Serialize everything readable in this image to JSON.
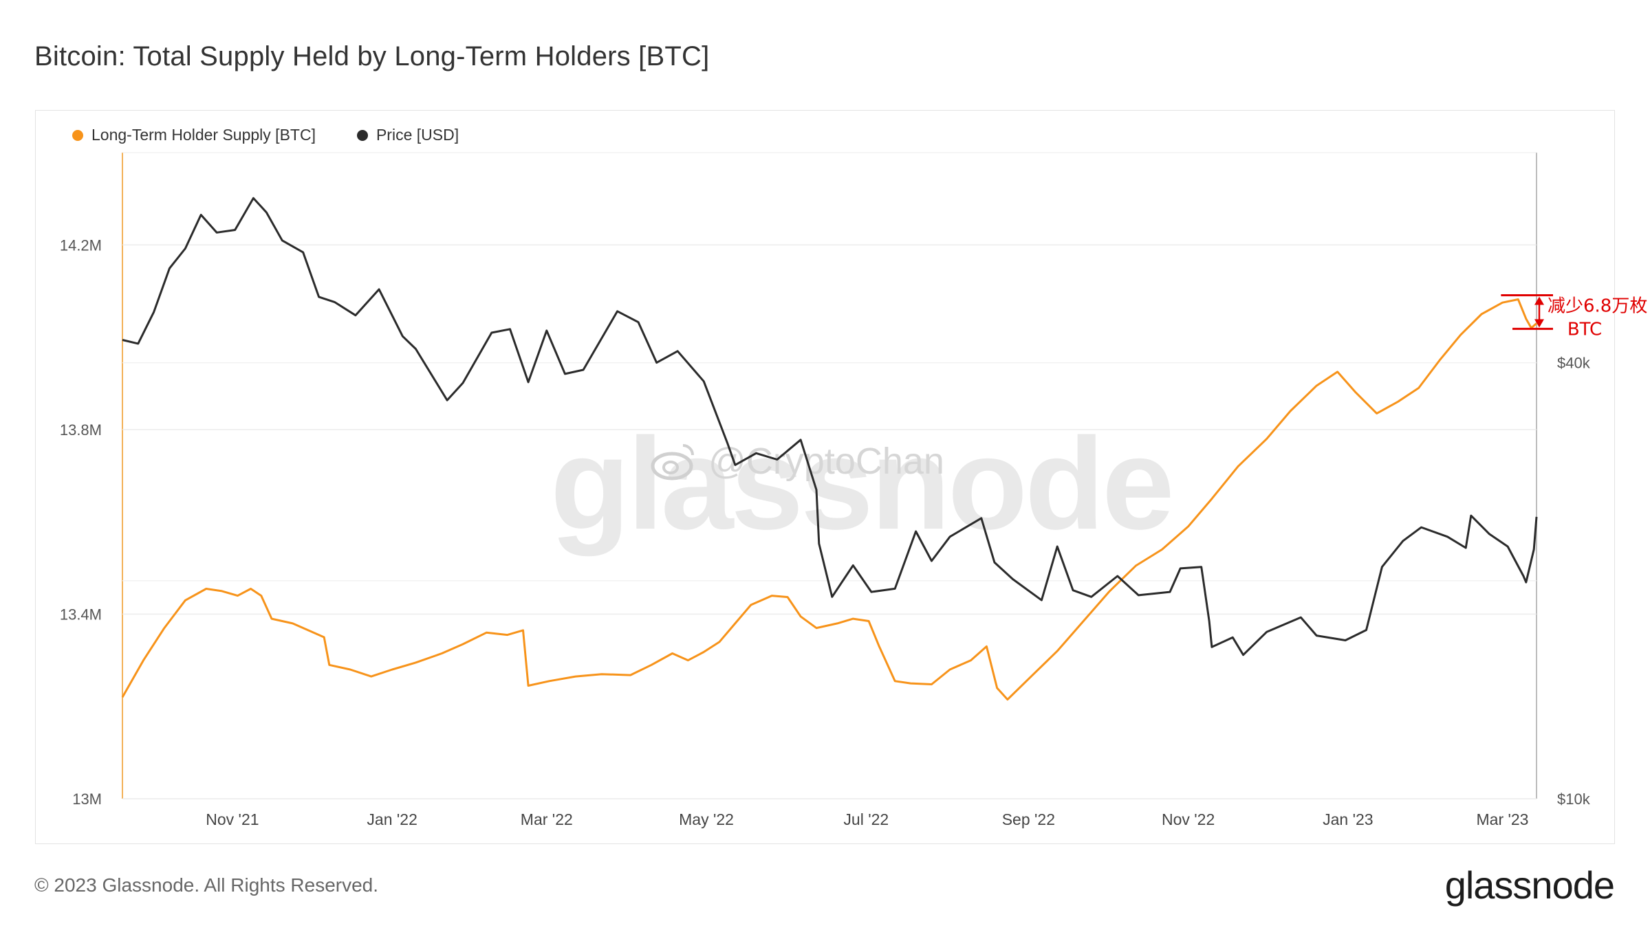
{
  "title": "Bitcoin: Total Supply Held by Long-Term Holders [BTC]",
  "footer": "© 2023 Glassnode. All Rights Reserved.",
  "brand": "glassnode",
  "watermark": {
    "main": "glassnode",
    "handle": "@CryptoChan",
    "icon": "weibo-icon"
  },
  "colors": {
    "lth": "#f7931a",
    "price": "#2b2b2b",
    "annotation": "#e00000"
  },
  "legend": [
    {
      "label": "Long-Term Holder Supply [BTC]",
      "color": "#f7931a"
    },
    {
      "label": "Price [USD]",
      "color": "#2b2b2b"
    }
  ],
  "annotation": {
    "line1": "减少6.8万枚",
    "line2": "BTC"
  },
  "chart_data": {
    "type": "line",
    "x_start": "2021-09-20",
    "x_end": "2023-03-14",
    "x_ticks": [
      {
        "date": "2021-11-01",
        "label": "Nov '21"
      },
      {
        "date": "2022-01-01",
        "label": "Jan '22"
      },
      {
        "date": "2022-03-01",
        "label": "Mar '22"
      },
      {
        "date": "2022-05-01",
        "label": "May '22"
      },
      {
        "date": "2022-07-01",
        "label": "Jul '22"
      },
      {
        "date": "2022-09-01",
        "label": "Sep '22"
      },
      {
        "date": "2022-11-01",
        "label": "Nov '22"
      },
      {
        "date": "2023-01-01",
        "label": "Jan '23"
      },
      {
        "date": "2023-03-01",
        "label": "Mar '23"
      }
    ],
    "y_left": {
      "min": 13000000,
      "max": 14400000,
      "ticks": [
        {
          "value": 13000000,
          "label": "13M"
        },
        {
          "value": 13400000,
          "label": "13.4M"
        },
        {
          "value": 13800000,
          "label": "13.8M"
        },
        {
          "value": 14200000,
          "label": "14.2M"
        }
      ]
    },
    "y_right": {
      "scale": "log",
      "min": 10000,
      "max": 78000,
      "ticks": [
        {
          "value": 10000,
          "label": "$10k"
        },
        {
          "value": 40000,
          "label": "$40k"
        }
      ]
    },
    "grid": true,
    "legend_position": "top-left",
    "series": [
      {
        "name": "Long-Term Holder Supply [BTC]",
        "axis": "left",
        "points": [
          [
            "2021-09-20",
            13220000
          ],
          [
            "2021-09-28",
            13300000
          ],
          [
            "2021-10-06",
            13370000
          ],
          [
            "2021-10-14",
            13430000
          ],
          [
            "2021-10-22",
            13455000
          ],
          [
            "2021-10-28",
            13450000
          ],
          [
            "2021-11-03",
            13440000
          ],
          [
            "2021-11-08",
            13455000
          ],
          [
            "2021-11-12",
            13440000
          ],
          [
            "2021-11-16",
            13390000
          ],
          [
            "2021-11-24",
            13380000
          ],
          [
            "2021-12-02",
            13360000
          ],
          [
            "2021-12-06",
            13350000
          ],
          [
            "2021-12-08",
            13290000
          ],
          [
            "2021-12-16",
            13280000
          ],
          [
            "2021-12-24",
            13265000
          ],
          [
            "2022-01-01",
            13280000
          ],
          [
            "2022-01-10",
            13295000
          ],
          [
            "2022-01-20",
            13315000
          ],
          [
            "2022-01-28",
            13335000
          ],
          [
            "2022-02-06",
            13360000
          ],
          [
            "2022-02-14",
            13355000
          ],
          [
            "2022-02-20",
            13365000
          ],
          [
            "2022-02-22",
            13245000
          ],
          [
            "2022-03-02",
            13255000
          ],
          [
            "2022-03-12",
            13265000
          ],
          [
            "2022-03-22",
            13270000
          ],
          [
            "2022-04-02",
            13268000
          ],
          [
            "2022-04-10",
            13290000
          ],
          [
            "2022-04-18",
            13315000
          ],
          [
            "2022-04-24",
            13300000
          ],
          [
            "2022-04-30",
            13318000
          ],
          [
            "2022-05-06",
            13340000
          ],
          [
            "2022-05-12",
            13380000
          ],
          [
            "2022-05-18",
            13420000
          ],
          [
            "2022-05-26",
            13440000
          ],
          [
            "2022-06-01",
            13437000
          ],
          [
            "2022-06-06",
            13395000
          ],
          [
            "2022-06-12",
            13370000
          ],
          [
            "2022-06-20",
            13380000
          ],
          [
            "2022-06-26",
            13390000
          ],
          [
            "2022-07-02",
            13385000
          ],
          [
            "2022-07-06",
            13330000
          ],
          [
            "2022-07-12",
            13255000
          ],
          [
            "2022-07-18",
            13250000
          ],
          [
            "2022-07-26",
            13248000
          ],
          [
            "2022-08-02",
            13280000
          ],
          [
            "2022-08-10",
            13300000
          ],
          [
            "2022-08-16",
            13330000
          ],
          [
            "2022-08-20",
            13240000
          ],
          [
            "2022-08-24",
            13215000
          ],
          [
            "2022-09-02",
            13265000
          ],
          [
            "2022-09-12",
            13320000
          ],
          [
            "2022-09-22",
            13385000
          ],
          [
            "2022-10-02",
            13450000
          ],
          [
            "2022-10-12",
            13505000
          ],
          [
            "2022-10-22",
            13540000
          ],
          [
            "2022-11-01",
            13590000
          ],
          [
            "2022-11-10",
            13650000
          ],
          [
            "2022-11-20",
            13720000
          ],
          [
            "2022-12-01",
            13780000
          ],
          [
            "2022-12-10",
            13840000
          ],
          [
            "2022-12-20",
            13895000
          ],
          [
            "2022-12-28",
            13925000
          ],
          [
            "2023-01-04",
            13880000
          ],
          [
            "2023-01-12",
            13835000
          ],
          [
            "2023-01-20",
            13860000
          ],
          [
            "2023-01-28",
            13890000
          ],
          [
            "2023-02-05",
            13950000
          ],
          [
            "2023-02-13",
            14005000
          ],
          [
            "2023-02-21",
            14050000
          ],
          [
            "2023-03-01",
            14075000
          ],
          [
            "2023-03-07",
            14082000
          ],
          [
            "2023-03-10",
            14040000
          ],
          [
            "2023-03-12",
            14020000
          ],
          [
            "2023-03-14",
            14030000
          ]
        ]
      },
      {
        "name": "Price [USD]",
        "axis": "right",
        "points": [
          [
            "2021-09-20",
            43000
          ],
          [
            "2021-09-26",
            42500
          ],
          [
            "2021-10-02",
            47000
          ],
          [
            "2021-10-08",
            54000
          ],
          [
            "2021-10-14",
            57500
          ],
          [
            "2021-10-20",
            64000
          ],
          [
            "2021-10-26",
            60500
          ],
          [
            "2021-11-02",
            61000
          ],
          [
            "2021-11-09",
            67500
          ],
          [
            "2021-11-14",
            64500
          ],
          [
            "2021-11-20",
            59000
          ],
          [
            "2021-11-28",
            56800
          ],
          [
            "2021-12-04",
            49300
          ],
          [
            "2021-12-10",
            48500
          ],
          [
            "2021-12-18",
            46500
          ],
          [
            "2021-12-27",
            50500
          ],
          [
            "2022-01-05",
            43500
          ],
          [
            "2022-01-10",
            41800
          ],
          [
            "2022-01-22",
            35500
          ],
          [
            "2022-01-28",
            37500
          ],
          [
            "2022-02-08",
            44000
          ],
          [
            "2022-02-15",
            44500
          ],
          [
            "2022-02-22",
            37600
          ],
          [
            "2022-03-01",
            44300
          ],
          [
            "2022-03-08",
            38600
          ],
          [
            "2022-03-15",
            39100
          ],
          [
            "2022-03-28",
            47100
          ],
          [
            "2022-04-05",
            45500
          ],
          [
            "2022-04-12",
            40000
          ],
          [
            "2022-04-20",
            41500
          ],
          [
            "2022-04-30",
            37700
          ],
          [
            "2022-05-09",
            31000
          ],
          [
            "2022-05-12",
            28900
          ],
          [
            "2022-05-20",
            30000
          ],
          [
            "2022-05-28",
            29400
          ],
          [
            "2022-06-06",
            31300
          ],
          [
            "2022-06-12",
            26700
          ],
          [
            "2022-06-13",
            22500
          ],
          [
            "2022-06-18",
            19000
          ],
          [
            "2022-06-26",
            21000
          ],
          [
            "2022-07-03",
            19300
          ],
          [
            "2022-07-12",
            19500
          ],
          [
            "2022-07-20",
            23400
          ],
          [
            "2022-07-26",
            21300
          ],
          [
            "2022-08-02",
            23000
          ],
          [
            "2022-08-14",
            24400
          ],
          [
            "2022-08-19",
            21200
          ],
          [
            "2022-08-26",
            20100
          ],
          [
            "2022-09-06",
            18800
          ],
          [
            "2022-09-12",
            22300
          ],
          [
            "2022-09-18",
            19400
          ],
          [
            "2022-09-25",
            19000
          ],
          [
            "2022-10-05",
            20300
          ],
          [
            "2022-10-13",
            19100
          ],
          [
            "2022-10-25",
            19300
          ],
          [
            "2022-10-29",
            20800
          ],
          [
            "2022-11-06",
            20900
          ],
          [
            "2022-11-09",
            17600
          ],
          [
            "2022-11-10",
            16200
          ],
          [
            "2022-11-18",
            16700
          ],
          [
            "2022-11-22",
            15800
          ],
          [
            "2022-12-01",
            17000
          ],
          [
            "2022-12-14",
            17800
          ],
          [
            "2022-12-20",
            16800
          ],
          [
            "2022-12-31",
            16550
          ],
          [
            "2023-01-08",
            17100
          ],
          [
            "2023-01-14",
            20900
          ],
          [
            "2023-01-22",
            22700
          ],
          [
            "2023-01-29",
            23700
          ],
          [
            "2023-02-08",
            23000
          ],
          [
            "2023-02-15",
            22200
          ],
          [
            "2023-02-17",
            24600
          ],
          [
            "2023-02-24",
            23200
          ],
          [
            "2023-03-03",
            22300
          ],
          [
            "2023-03-09",
            20300
          ],
          [
            "2023-03-10",
            19900
          ],
          [
            "2023-03-13",
            22100
          ],
          [
            "2023-03-14",
            24500
          ]
        ]
      }
    ]
  }
}
